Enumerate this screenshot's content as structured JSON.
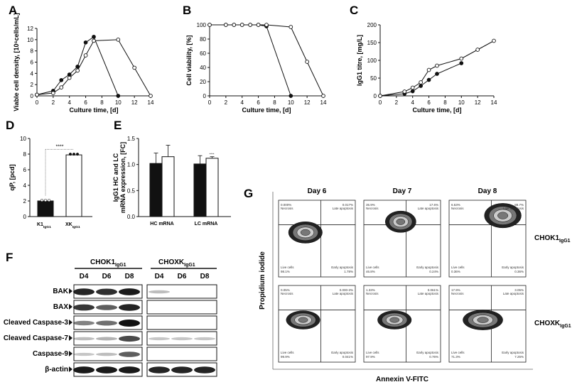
{
  "chart_data": [
    {
      "panel": "A",
      "type": "line",
      "xlabel": "Culture time, [d]",
      "ylabel": "Viable cell density, [10⁶cells/mL]",
      "xlim": [
        0,
        14
      ],
      "ylim": [
        0,
        12
      ],
      "xticks": [
        "0",
        "2",
        "4",
        "6",
        "8",
        "10",
        "12",
        "14"
      ],
      "yticks": [
        "0",
        "2",
        "4",
        "6",
        "8",
        "10",
        "12"
      ],
      "series": [
        {
          "marker": "filled",
          "x": [
            0,
            2,
            3,
            4,
            5,
            6,
            7,
            10
          ],
          "y": [
            0.2,
            0.9,
            2.8,
            3.8,
            5.2,
            9.5,
            10.5,
            0
          ]
        },
        {
          "marker": "open",
          "x": [
            0,
            2,
            3,
            4,
            5,
            6,
            7,
            10,
            12,
            14
          ],
          "y": [
            0.2,
            0.5,
            1.5,
            3.2,
            4.5,
            7.2,
            9.8,
            10,
            5,
            0
          ]
        }
      ]
    },
    {
      "panel": "B",
      "type": "line",
      "xlabel": "Culture time, [d]",
      "ylabel": "Cell viability, [%]",
      "xlim": [
        0,
        14
      ],
      "ylim": [
        0,
        100
      ],
      "xticks": [
        "0",
        "2",
        "4",
        "6",
        "8",
        "10",
        "12",
        "14"
      ],
      "yticks": [
        "0",
        "20",
        "40",
        "60",
        "80",
        "100"
      ],
      "series": [
        {
          "marker": "filled",
          "x": [
            0,
            2,
            3,
            4,
            5,
            6,
            7,
            10
          ],
          "y": [
            100,
            100,
            100,
            100,
            100,
            100,
            98,
            0
          ]
        },
        {
          "marker": "open",
          "x": [
            0,
            2,
            3,
            4,
            5,
            6,
            7,
            10,
            12,
            14
          ],
          "y": [
            100,
            100,
            100,
            100,
            100,
            100,
            100,
            97,
            48,
            0
          ]
        }
      ]
    },
    {
      "panel": "C",
      "type": "line",
      "xlabel": "Culture time, [d]",
      "ylabel": "IgG1 titre, [mg/L]",
      "xlim": [
        0,
        14
      ],
      "ylim": [
        0,
        200
      ],
      "xticks": [
        "0",
        "2",
        "4",
        "6",
        "8",
        "10",
        "12",
        "14"
      ],
      "yticks": [
        "0",
        "50",
        "100",
        "150",
        "200"
      ],
      "series": [
        {
          "marker": "filled",
          "x": [
            0,
            3,
            4,
            5,
            6,
            7,
            10
          ],
          "y": [
            0,
            6,
            13,
            28,
            45,
            62,
            92
          ]
        },
        {
          "marker": "open",
          "x": [
            0,
            3,
            4,
            5,
            6,
            7,
            10,
            12,
            14
          ],
          "y": [
            0,
            12,
            23,
            38,
            73,
            85,
            105,
            130,
            155
          ]
        }
      ]
    },
    {
      "panel": "D",
      "type": "bar",
      "ylabel": "qP, [pcd]",
      "ylim": [
        0,
        10
      ],
      "yticks": [
        "0",
        "2",
        "4",
        "6",
        "8",
        "10"
      ],
      "categories": [
        "K1IgG1",
        "XKIgG1"
      ],
      "values": [
        2.0,
        7.9
      ],
      "significance": "****"
    },
    {
      "panel": "E",
      "type": "bar",
      "ylabel": "IgG1 HC and LC mRNA expression, [FC]",
      "ylim": [
        0,
        1.5
      ],
      "yticks": [
        "0.0",
        "0.5",
        "1.0",
        "1.5"
      ],
      "categories": [
        "HC mRNA",
        "LC mRNA"
      ],
      "series": [
        {
          "fill": "black",
          "values": [
            1.02,
            1.01
          ],
          "errors": [
            0.2,
            0.16
          ]
        },
        {
          "fill": "white",
          "values": [
            1.15,
            1.12
          ],
          "errors": [
            0.22,
            0.03
          ]
        }
      ],
      "significance": "****"
    }
  ],
  "panelF": {
    "letter": "F",
    "group1": "CHOK1IgG1",
    "group2": "CHOXKIgG1",
    "lanes": [
      "D4",
      "D6",
      "D8",
      "D4",
      "D6",
      "D8"
    ],
    "rows": [
      {
        "label": "BAK",
        "levels1": [
          0.9,
          0.85,
          0.95
        ],
        "levels2": [
          0.1,
          0,
          0
        ]
      },
      {
        "label": "BAX",
        "levels1": [
          0.8,
          0.6,
          0.9
        ],
        "levels2": [
          0,
          0,
          0
        ]
      },
      {
        "label": "Cleaved Caspase-3",
        "levels1": [
          0.4,
          0.5,
          1.0
        ],
        "levels2": [
          0,
          0,
          0
        ]
      },
      {
        "label": "Cleaved Caspase-7",
        "levels1": [
          0.1,
          0.15,
          0.7
        ],
        "levels2": [
          0.05,
          0.05,
          0.05
        ]
      },
      {
        "label": "Caspase-9",
        "levels1": [
          0.05,
          0.1,
          0.6
        ],
        "levels2": [
          0,
          0,
          0
        ]
      },
      {
        "label": "β-actin",
        "levels1": [
          0.95,
          0.95,
          0.95
        ],
        "levels2": [
          0.9,
          0.9,
          0.9
        ]
      }
    ]
  },
  "panelG": {
    "letter": "G",
    "days": [
      "Day 6",
      "Day 7",
      "Day 8"
    ],
    "rows": [
      "CHOK1IgG1",
      "CHOXKIgG1"
    ],
    "ylabel": "Propidium iodide",
    "xlabel": "Annexin V-FITC",
    "quadrants": [
      [
        {
          "ul": "0.000%",
          "ur": "0.017%",
          "ll": "98.1%",
          "lr": "1.78%"
        },
        {
          "ul": "35.9%",
          "ur": "17.6%",
          "ll": "46.8%",
          "lr": "0.24%"
        },
        {
          "ul": "6.53%",
          "ur": "88.7%",
          "ll": "0.36%",
          "lr": "0.36%"
        }
      ],
      [
        {
          "ul": "0.05%",
          "ur": "0.000-3%",
          "ll": "99.9%",
          "lr": "0.041%"
        },
        {
          "ul": "1.33%",
          "ur": "0.061%",
          "ll": "97.9%",
          "lr": "0.76%"
        },
        {
          "ul": "17.9%",
          "ur": "3.05%",
          "ll": "71.3%",
          "lr": "7.25%"
        }
      ]
    ],
    "quadrant_names": {
      "ul": "Necrosis",
      "ur": "Late apoptosis",
      "ll": "Live cells",
      "lr": "Early apoptosis"
    }
  }
}
